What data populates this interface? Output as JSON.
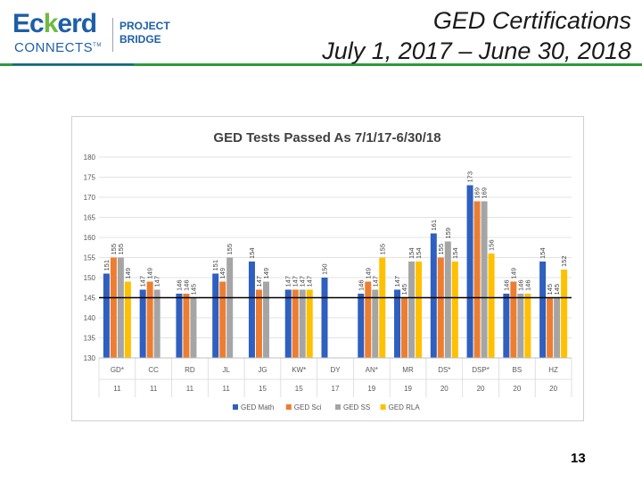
{
  "header": {
    "logo_brand": "Eckerd",
    "logo_brand_start": "Ec",
    "logo_brand_k": "k",
    "logo_brand_end": "erd",
    "logo_sub": "CONNECTS",
    "logo_tm": "TM",
    "logo_project_line1": "PROJECT",
    "logo_project_line2": "BRIDGE",
    "title_line1": "GED Certifications",
    "title_line2": "July 1, 2017 – June 30, 2018"
  },
  "footer": {
    "page_number": "13"
  },
  "colors": {
    "brand_blue": "#1d5fa8",
    "brand_green": "#6dbb3f",
    "rule_green": "#2e9a3e",
    "series": [
      "#2f5fbf",
      "#ed7d31",
      "#a5a5a5",
      "#ffc000"
    ]
  },
  "chart_data": {
    "type": "bar",
    "title": "GED Tests Passed As 7/1/17-6/30/18",
    "categories": [
      "GD*",
      "CC",
      "RD",
      "JL",
      "JG",
      "KW*",
      "DY",
      "AN*",
      "MR",
      "DS*",
      "DSP*",
      "BS",
      "HZ"
    ],
    "category_sub_labels": [
      "11",
      "11",
      "11",
      "11",
      "15",
      "15",
      "17",
      "19",
      "19",
      "20",
      "20",
      "20",
      "20"
    ],
    "series": [
      {
        "name": "GED Math",
        "values": [
          151,
          147,
          146,
          151,
          154,
          147,
          150,
          146,
          147,
          161,
          173,
          146,
          154
        ]
      },
      {
        "name": "GED Sci",
        "values": [
          155,
          149,
          146,
          149,
          147,
          147,
          null,
          149,
          145,
          155,
          169,
          149,
          145
        ]
      },
      {
        "name": "GED SS",
        "values": [
          155,
          147,
          145,
          155,
          149,
          147,
          null,
          147,
          154,
          159,
          169,
          146,
          145
        ]
      },
      {
        "name": "GED RLA",
        "values": [
          149,
          null,
          null,
          null,
          null,
          147,
          null,
          155,
          154,
          154,
          156,
          146,
          152
        ]
      }
    ],
    "value_labels": [
      [
        "151",
        "155",
        "155",
        "149"
      ],
      [
        "147",
        "149",
        "147",
        ""
      ],
      [
        "146",
        "146",
        "145",
        ""
      ],
      [
        "151",
        "149",
        "155",
        ""
      ],
      [
        "154",
        "147",
        "149",
        ""
      ],
      [
        "147",
        "147",
        "147",
        "147"
      ],
      [
        "150",
        "",
        "",
        ""
      ],
      [
        "146",
        "149",
        "147",
        "155"
      ],
      [
        "147",
        "145",
        "154",
        "154"
      ],
      [
        "161",
        "155",
        "159",
        "154"
      ],
      [
        "173",
        "169",
        "169",
        "156"
      ],
      [
        "146",
        "149",
        "146",
        "146"
      ],
      [
        "154",
        "145",
        "145",
        "152"
      ]
    ],
    "ylim": [
      130,
      180
    ],
    "y_ticks": [
      130,
      135,
      140,
      145,
      150,
      155,
      160,
      165,
      170,
      175,
      180
    ],
    "reference_line": 145,
    "grid": true,
    "legend_position": "bottom"
  }
}
